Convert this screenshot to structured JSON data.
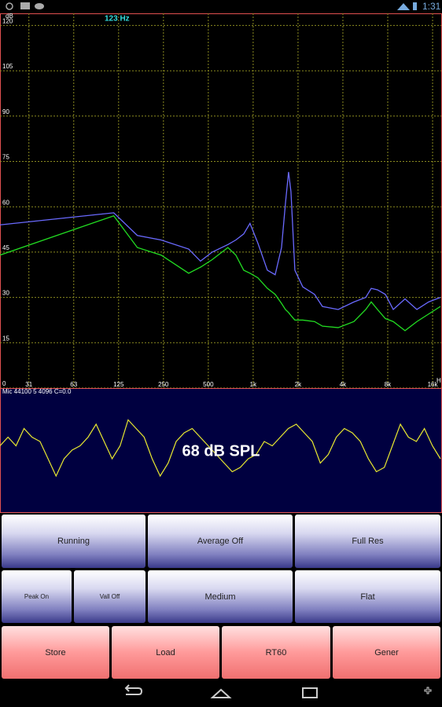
{
  "status_bar": {
    "time": "1:31"
  },
  "chart_data": {
    "type": "line",
    "y_unit_label": "dB",
    "marker_label": "123 Hz",
    "x_unit_label": "H",
    "x_scale": "log",
    "grid": true,
    "xlim": [
      20,
      18280
    ],
    "ylim": [
      0,
      124
    ],
    "xticks": [
      {
        "value": 31.25,
        "label": "31"
      },
      {
        "value": 62.5,
        "label": "63"
      },
      125,
      250,
      500,
      {
        "value": 1000,
        "label": "1k"
      },
      {
        "value": 2000,
        "label": "2k"
      },
      {
        "value": 4000,
        "label": "4k"
      },
      {
        "value": 8000,
        "label": "8k"
      },
      {
        "value": 16000,
        "label": "16k"
      }
    ],
    "yticks": [
      0,
      15,
      30,
      45,
      60,
      75,
      90,
      105,
      120
    ],
    "x": [
      20,
      116,
      167,
      241,
      369,
      443,
      531,
      677,
      765,
      864,
      952,
      1075,
      1245,
      1405,
      1550,
      1646,
      1728,
      1793,
      1905,
      2151,
      2582,
      2915,
      3720,
      4744,
      5695,
      6200,
      6830,
      7712,
      8712,
      10450,
      12550,
      15050,
      18060
    ],
    "series": [
      {
        "color": "#6a6aff",
        "values": [
          54,
          58,
          50.5,
          49,
          46,
          42,
          45,
          47.5,
          49,
          51,
          54.5,
          48,
          39,
          37.5,
          46.5,
          61,
          71.5,
          65,
          39,
          33.5,
          31,
          27,
          26,
          28.5,
          30,
          33,
          32.5,
          31,
          26,
          29.5,
          26,
          28.5,
          30
        ]
      },
      {
        "color": "#22dd22",
        "values": [
          44,
          57,
          46.5,
          44,
          38,
          40,
          42.5,
          46.5,
          44,
          39,
          38,
          36.5,
          33,
          31,
          28,
          26,
          25,
          24,
          22.5,
          22.5,
          22,
          20.5,
          20,
          22,
          26,
          28.5,
          26,
          23,
          22,
          19,
          22,
          24.5,
          27
        ]
      }
    ]
  },
  "waveform_panel": {
    "info": "Mic 44100 5 4096 C=0.0",
    "level": "68 dB SPL",
    "samples": [
      0.1,
      0.3,
      0.1,
      0.5,
      0.3,
      0.2,
      -0.2,
      -0.6,
      -0.2,
      0.0,
      0.1,
      0.3,
      0.6,
      0.2,
      -0.2,
      0.1,
      0.7,
      0.5,
      0.3,
      -0.2,
      -0.6,
      -0.3,
      0.2,
      0.4,
      0.5,
      0.3,
      0.1,
      -0.1,
      -0.3,
      -0.5,
      -0.4,
      -0.2,
      -0.1,
      0.2,
      0.1,
      0.3,
      0.5,
      0.6,
      0.4,
      0.2,
      -0.3,
      -0.1,
      0.3,
      0.5,
      0.4,
      0.2,
      -0.2,
      -0.5,
      -0.4,
      0.1,
      0.6,
      0.3,
      0.2,
      0.5,
      0.1,
      -0.2
    ]
  },
  "buttons": {
    "rows": [
      [
        "Running",
        "Average Off",
        "Full Res"
      ],
      [
        "Peak On",
        "Vall Off",
        "Medium",
        "Flat"
      ],
      [
        "Store",
        "Load",
        "RT60",
        "Gener"
      ]
    ]
  }
}
